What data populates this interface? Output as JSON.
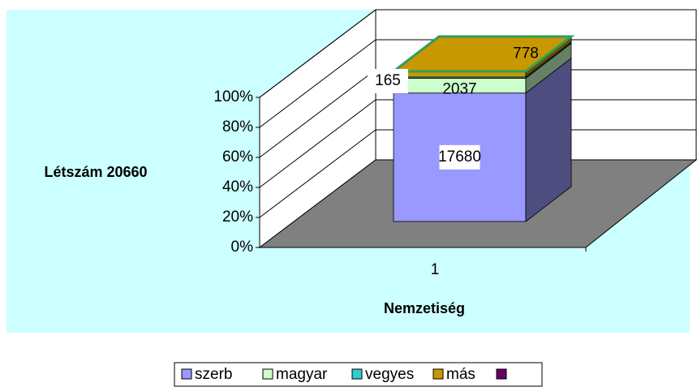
{
  "chart_data": {
    "type": "bar",
    "stacked": "percent",
    "x_label": "Nemzetiség",
    "y_label": "Létszám 20660",
    "categories": [
      "1"
    ],
    "series": [
      {
        "name": "szerb",
        "color": "#9999ff",
        "values": [
          17680
        ]
      },
      {
        "name": "magyar",
        "color": "#ccffcc",
        "values": [
          2037
        ]
      },
      {
        "name": "vegyes",
        "color": "#33cccc",
        "values": [
          165
        ]
      },
      {
        "name": "más",
        "color": "#c89800",
        "values": [
          778
        ]
      },
      {
        "name": null,
        "color": "#660066",
        "values": [
          0
        ]
      }
    ],
    "ylim": [
      0,
      100
    ],
    "yticks": [
      {
        "value": 0,
        "label": "0%"
      },
      {
        "value": 20,
        "label": "20%"
      },
      {
        "value": 40,
        "label": "40%"
      },
      {
        "value": 60,
        "label": "60%"
      },
      {
        "value": 80,
        "label": "80%"
      },
      {
        "value": 100,
        "label": "100%"
      }
    ],
    "grid": true
  }
}
